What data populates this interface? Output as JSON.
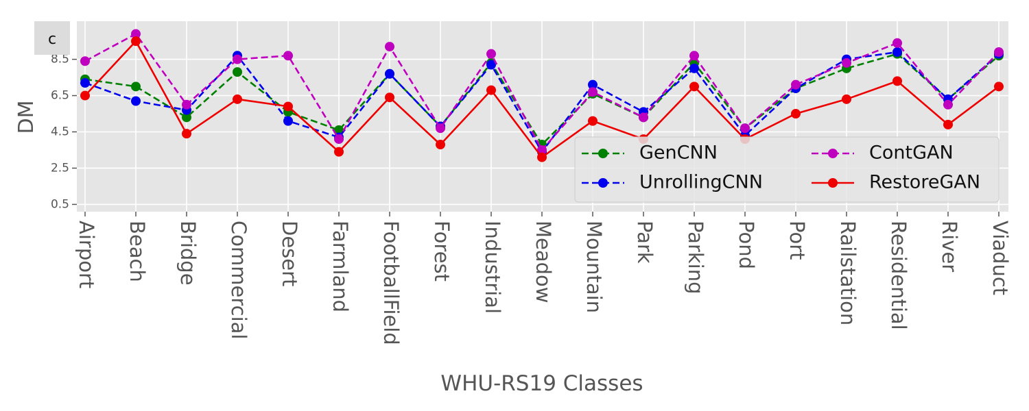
{
  "chart_data": {
    "type": "line",
    "panel_label": "c",
    "title": "",
    "xlabel": "WHU-RS19 Classes",
    "ylabel": "DM",
    "ylim": [
      0.1,
      10.6
    ],
    "yticks": [
      0.5,
      2.5,
      4.5,
      6.5,
      8.5
    ],
    "ytick_labels": [
      "0.5",
      "2.5",
      "4.5",
      "6.5",
      "8.5"
    ],
    "grid": true,
    "legend_position": "lower-right",
    "categories": [
      "Airport",
      "Beach",
      "Bridge",
      "Commercial",
      "Desert",
      "Farmland",
      "FootballField",
      "Forest",
      "Industrial",
      "Meadow",
      "Mountain",
      "Park",
      "Parking",
      "Pond",
      "Port",
      "Railstation",
      "Residential",
      "River",
      "Viaduct"
    ],
    "series": [
      {
        "name": "GenCNN",
        "color": "#008000",
        "dashed": true,
        "values": [
          7.4,
          7.0,
          5.3,
          7.8,
          5.6,
          4.6,
          7.7,
          4.8,
          8.3,
          3.8,
          6.6,
          5.3,
          8.3,
          4.7,
          6.9,
          8.0,
          8.8,
          6.3,
          8.7
        ]
      },
      {
        "name": "UnrollingCNN",
        "color": "#0000ee",
        "dashed": true,
        "values": [
          7.2,
          6.2,
          5.7,
          8.7,
          5.1,
          4.2,
          7.7,
          4.8,
          8.2,
          3.4,
          7.1,
          5.6,
          8.0,
          4.3,
          6.9,
          8.5,
          8.9,
          6.3,
          8.8
        ]
      },
      {
        "name": "ContGAN",
        "color": "#bf00bf",
        "dashed": true,
        "values": [
          8.4,
          9.9,
          6.0,
          8.5,
          8.7,
          4.1,
          9.2,
          4.7,
          8.8,
          3.5,
          6.7,
          5.3,
          8.7,
          4.7,
          7.1,
          8.3,
          9.4,
          6.0,
          8.9
        ]
      },
      {
        "name": "RestoreGAN",
        "color": "#ee0000",
        "dashed": false,
        "values": [
          6.5,
          9.5,
          4.4,
          6.3,
          5.9,
          3.4,
          6.4,
          3.8,
          6.8,
          3.1,
          5.1,
          4.1,
          7.0,
          4.1,
          5.5,
          6.3,
          7.3,
          4.9,
          7.0
        ]
      }
    ]
  }
}
